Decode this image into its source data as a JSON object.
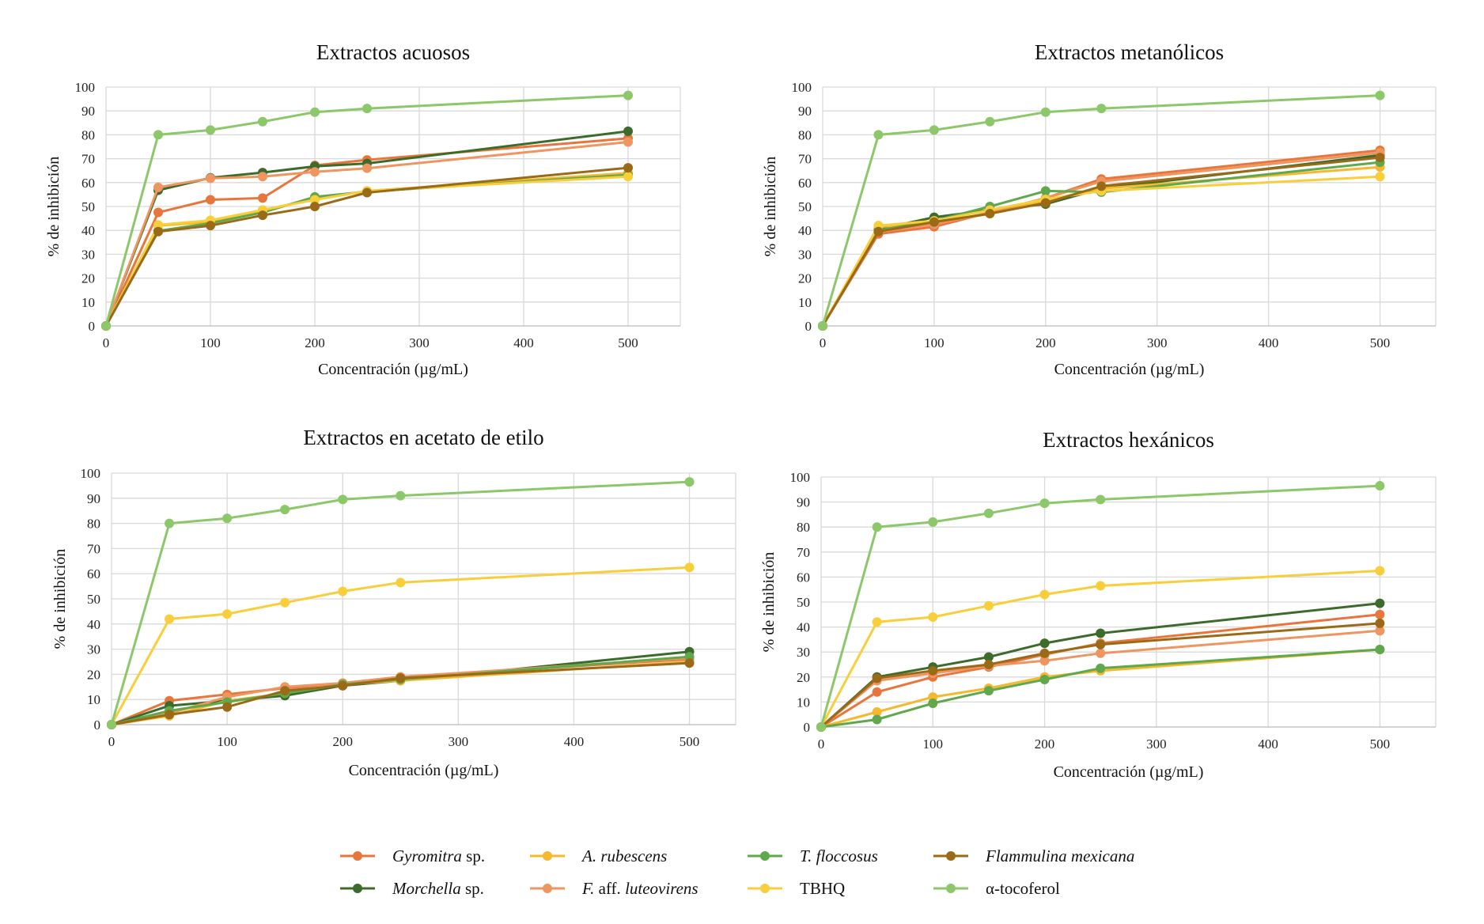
{
  "figure_name": "dpph-inhibition-panels",
  "chart_data": [
    {
      "type": "line",
      "title": "Extractos acuosos",
      "xlabel": "Concentración (µg/mL)",
      "ylabel": "% de inhibición",
      "xlim": [
        0,
        550
      ],
      "xticks": [
        0,
        100,
        200,
        300,
        400,
        500
      ],
      "ylim": [
        0,
        100
      ],
      "yticks": [
        0,
        10,
        20,
        30,
        40,
        50,
        60,
        70,
        80,
        90,
        100
      ],
      "grid": true,
      "x": [
        0,
        50,
        100,
        150,
        200,
        250,
        500
      ],
      "series": [
        {
          "key": "gyromitra",
          "values": [
            0,
            47.5,
            52.8,
            53.5,
            67.2,
            69.5,
            78.5
          ]
        },
        {
          "key": "morchella",
          "values": [
            0,
            56.8,
            62,
            64.2,
            66.8,
            68,
            81.5
          ]
        },
        {
          "key": "rubescens",
          "values": [
            0,
            42,
            43.5,
            48.5,
            53,
            56.5,
            64
          ]
        },
        {
          "key": "luteovirens",
          "values": [
            0,
            58,
            61.8,
            62.5,
            64.5,
            66,
            77
          ]
        },
        {
          "key": "floccosus",
          "values": [
            0,
            39.8,
            43,
            47.5,
            54,
            56.2,
            63.2
          ]
        },
        {
          "key": "tbhq",
          "values": [
            0,
            42.3,
            44.2,
            48.5,
            52.8,
            56.5,
            62.5
          ]
        },
        {
          "key": "flammulina",
          "values": [
            0,
            39.5,
            42,
            46.3,
            50,
            55.8,
            66.2
          ]
        },
        {
          "key": "tocoferol",
          "values": [
            0,
            80,
            82,
            85.5,
            89.5,
            91,
            96.5
          ]
        }
      ]
    },
    {
      "type": "line",
      "title": "Extractos  metanólicos",
      "xlabel": "Concentración (µg/mL)",
      "ylabel": "% de inhibición",
      "xlim": [
        0,
        550
      ],
      "xticks": [
        0,
        100,
        200,
        300,
        400,
        500
      ],
      "ylim": [
        0,
        100
      ],
      "yticks": [
        0,
        10,
        20,
        30,
        40,
        50,
        60,
        70,
        80,
        90,
        100
      ],
      "grid": true,
      "x": [
        0,
        50,
        100,
        150,
        200,
        250,
        500
      ],
      "series": [
        {
          "key": "gyromitra",
          "values": [
            0,
            38.5,
            41.5,
            47.5,
            53.5,
            61.5,
            73.5
          ]
        },
        {
          "key": "morchella",
          "values": [
            0,
            40.5,
            45.5,
            48.5,
            51,
            57.5,
            71.5
          ]
        },
        {
          "key": "rubescens",
          "values": [
            0,
            41.5,
            43,
            47,
            52.5,
            57.5,
            66.5
          ]
        },
        {
          "key": "luteovirens",
          "values": [
            0,
            39.5,
            42.5,
            47.5,
            53.5,
            60.5,
            72.5
          ]
        },
        {
          "key": "floccosus",
          "values": [
            0,
            40,
            44,
            50,
            56.5,
            56,
            68.5
          ]
        },
        {
          "key": "tbhq",
          "values": [
            0,
            42,
            44,
            48.5,
            53,
            56.5,
            62.5
          ]
        },
        {
          "key": "flammulina",
          "values": [
            0,
            39.5,
            43.5,
            47,
            51.5,
            58.5,
            70.5
          ]
        },
        {
          "key": "tocoferol",
          "values": [
            0,
            80,
            82,
            85.5,
            89.5,
            91,
            96.5
          ]
        }
      ]
    },
    {
      "type": "line",
      "title": "Extractos en acetato de etilo",
      "xlabel": "Concentración (µg/mL)",
      "ylabel": "% de inhibición",
      "xlim": [
        0,
        540
      ],
      "xticks": [
        0,
        100,
        200,
        300,
        400,
        500
      ],
      "ylim": [
        0,
        100
      ],
      "yticks": [
        0,
        10,
        20,
        30,
        40,
        50,
        60,
        70,
        80,
        90,
        100
      ],
      "grid": true,
      "x": [
        0,
        50,
        100,
        150,
        200,
        250,
        500
      ],
      "series": [
        {
          "key": "gyromitra",
          "values": [
            0,
            9.5,
            12,
            14.5,
            16.5,
            19,
            26
          ]
        },
        {
          "key": "morchella",
          "values": [
            0,
            7.5,
            9.5,
            11.5,
            15.5,
            17.5,
            29
          ]
        },
        {
          "key": "rubescens",
          "values": [
            0,
            3.5,
            9.5,
            12.5,
            16,
            17.5,
            25
          ]
        },
        {
          "key": "luteovirens",
          "values": [
            0,
            4.5,
            11,
            15,
            16.5,
            19,
            26.5
          ]
        },
        {
          "key": "floccosus",
          "values": [
            0,
            5.5,
            9,
            12.5,
            16,
            18,
            27
          ]
        },
        {
          "key": "tbhq",
          "values": [
            0,
            42,
            44,
            48.5,
            53,
            56.5,
            62.5
          ]
        },
        {
          "key": "flammulina",
          "values": [
            0,
            4,
            7,
            13.5,
            15.5,
            18.5,
            24.5
          ]
        },
        {
          "key": "tocoferol",
          "values": [
            0,
            80,
            82,
            85.5,
            89.5,
            91,
            96.5
          ]
        }
      ]
    },
    {
      "type": "line",
      "title": "Extractos  hexánicos",
      "xlabel": "Concentración (µg/mL)",
      "ylabel": "% de inhibición",
      "xlim": [
        0,
        550
      ],
      "xticks": [
        0,
        100,
        200,
        300,
        400,
        500
      ],
      "ylim": [
        0,
        100
      ],
      "yticks": [
        0,
        10,
        20,
        30,
        40,
        50,
        60,
        70,
        80,
        90,
        100
      ],
      "grid": true,
      "x": [
        0,
        50,
        100,
        150,
        200,
        250,
        500
      ],
      "series": [
        {
          "key": "gyromitra",
          "values": [
            0,
            14,
            20,
            24,
            29,
            33.5,
            45
          ]
        },
        {
          "key": "morchella",
          "values": [
            0,
            20,
            24,
            28,
            33.5,
            37.5,
            49.5
          ]
        },
        {
          "key": "rubescens",
          "values": [
            0,
            6,
            12,
            15.5,
            20,
            22.5,
            31
          ]
        },
        {
          "key": "luteovirens",
          "values": [
            0,
            18.5,
            21.5,
            24.5,
            26.5,
            29.5,
            38.5
          ]
        },
        {
          "key": "floccosus",
          "values": [
            0,
            3,
            9.5,
            14.5,
            19,
            23.5,
            31
          ]
        },
        {
          "key": "tbhq",
          "values": [
            0,
            42,
            44,
            48.5,
            53,
            56.5,
            62.5
          ]
        },
        {
          "key": "flammulina",
          "values": [
            0,
            19.5,
            22.5,
            25,
            29.5,
            33,
            41.5
          ]
        },
        {
          "key": "tocoferol",
          "values": [
            0,
            80,
            82,
            85.5,
            89.5,
            91,
            96.5
          ]
        }
      ]
    }
  ],
  "legend": {
    "placement": "bottom-center",
    "items": [
      {
        "key": "gyromitra",
        "italic": "Gyromitra",
        "rest": " sp.",
        "color": "#E8763C"
      },
      {
        "key": "rubescens",
        "italic": "A. rubescens",
        "rest": "",
        "color": "#F5B82E"
      },
      {
        "key": "floccosus",
        "italic": "T. floccosus",
        "rest": "",
        "color": "#5FA84B"
      },
      {
        "key": "flammulina",
        "italic": "Flammulina mexicana",
        "rest": "",
        "color": "#9A6A17"
      },
      {
        "key": "morchella",
        "italic": "Morchella",
        "rest": " sp.",
        "color": "#3C6B2C"
      },
      {
        "key": "luteovirens",
        "italic": "F.",
        "rest": " aff. ",
        "italic2": "luteovirens",
        "color": "#EE9560"
      },
      {
        "key": "tbhq",
        "italic": "",
        "rest": "TBHQ",
        "color": "#F8CF3A"
      },
      {
        "key": "tocoferol",
        "italic": "",
        "rest": "α-tocoferol",
        "color": "#8CC76A"
      }
    ]
  }
}
